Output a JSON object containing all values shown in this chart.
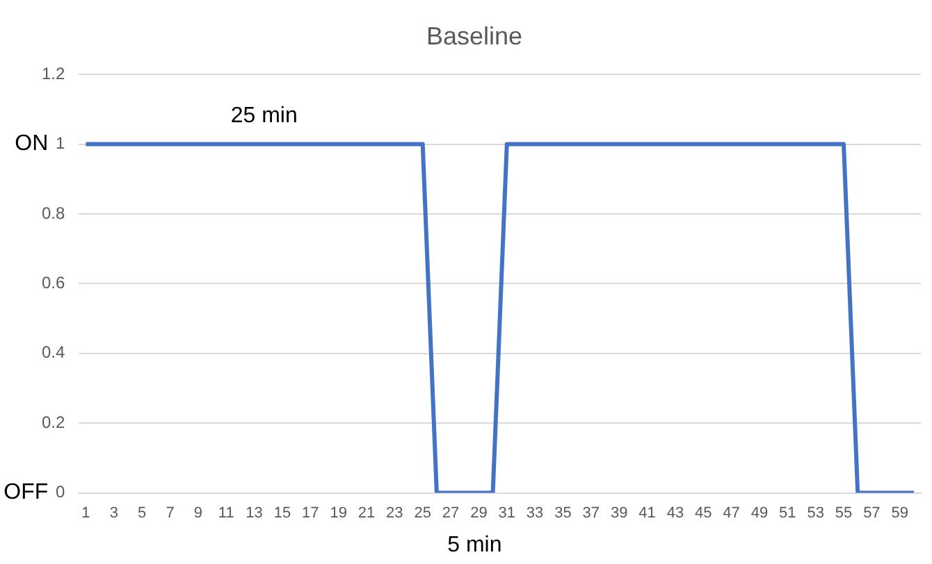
{
  "chart_data": {
    "type": "line",
    "title": "Baseline",
    "x": [
      1,
      2,
      3,
      4,
      5,
      6,
      7,
      8,
      9,
      10,
      11,
      12,
      13,
      14,
      15,
      16,
      17,
      18,
      19,
      20,
      21,
      22,
      23,
      24,
      25,
      26,
      27,
      28,
      29,
      30,
      31,
      32,
      33,
      34,
      35,
      36,
      37,
      38,
      39,
      40,
      41,
      42,
      43,
      44,
      45,
      46,
      47,
      48,
      49,
      50,
      51,
      52,
      53,
      54,
      55,
      56,
      57,
      58,
      59,
      60
    ],
    "xlim": [
      0.5,
      60.5
    ],
    "xticks": [
      1,
      3,
      5,
      7,
      9,
      11,
      13,
      15,
      17,
      19,
      21,
      23,
      25,
      27,
      29,
      31,
      33,
      35,
      37,
      39,
      41,
      43,
      45,
      47,
      49,
      51,
      53,
      55,
      57,
      59
    ],
    "series": [
      {
        "color": "#4472c4",
        "values": [
          1,
          1,
          1,
          1,
          1,
          1,
          1,
          1,
          1,
          1,
          1,
          1,
          1,
          1,
          1,
          1,
          1,
          1,
          1,
          1,
          1,
          1,
          1,
          1,
          1,
          0,
          0,
          0,
          0,
          0,
          1,
          1,
          1,
          1,
          1,
          1,
          1,
          1,
          1,
          1,
          1,
          1,
          1,
          1,
          1,
          1,
          1,
          1,
          1,
          1,
          1,
          1,
          1,
          1,
          1,
          0,
          0,
          0,
          0,
          0
        ]
      }
    ],
    "ylim": [
      0,
      1.2
    ],
    "yticks": [
      0,
      0.2,
      0.4,
      0.6,
      0.8,
      1,
      1.2
    ],
    "grid": "y",
    "legend": false,
    "marker": "none",
    "annotations": [
      "25 min",
      "5 min",
      "ON",
      "OFF"
    ]
  }
}
